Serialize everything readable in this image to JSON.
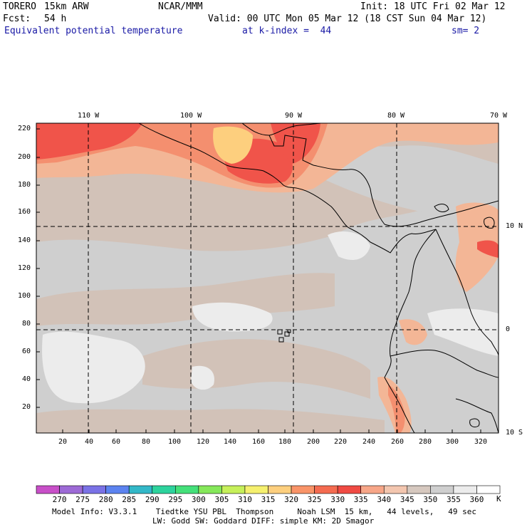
{
  "header": {
    "model": "TORERO",
    "resolution": "15km ARW",
    "org": "NCAR/MMM",
    "init": "Init: 18 UTC Fri 02 Mar 12",
    "fcst_label": "Fcst:",
    "fcst_value": "54 h",
    "valid": "Valid: 00 UTC Mon 05 Mar 12 (18 CST Sun 04 Mar 12)",
    "field": "Equivalent potential temperature",
    "level": "at k-index =  44",
    "smooth": "sm= 2"
  },
  "map": {
    "lon_labels": [
      "110 W",
      "100 W",
      "90 W",
      "80 W",
      "70 W"
    ],
    "lat_labels": [
      "10 N",
      "0",
      "10 S"
    ],
    "x_grid_labels": [
      "20",
      "40",
      "60",
      "80",
      "100",
      "120",
      "140",
      "160",
      "180",
      "200",
      "220",
      "240",
      "260",
      "280",
      "300",
      "320"
    ],
    "y_grid_labels": [
      "220",
      "200",
      "180",
      "160",
      "140",
      "120",
      "100",
      "80",
      "60",
      "40",
      "20"
    ],
    "colors": {
      "border": "#000000",
      "gridline": "#000000",
      "t350": "#cfcfcf",
      "t355": "#ececec",
      "t345": "#d2c2b8",
      "t340": "#f3b696",
      "t335": "#f48f6f",
      "t330": "#f0544a",
      "t320": "#fdcf7e"
    }
  },
  "colorbar": {
    "unit": "K",
    "labels": [
      "270",
      "275",
      "280",
      "285",
      "290",
      "295",
      "300",
      "305",
      "310",
      "315",
      "320",
      "325",
      "330",
      "335",
      "340",
      "345",
      "350",
      "355",
      "360"
    ],
    "colors": [
      "#c84fc8",
      "#9d6ad6",
      "#7a72e6",
      "#5c83f0",
      "#33b8c8",
      "#2dd39d",
      "#44e07a",
      "#85e85a",
      "#c6f05a",
      "#f5f06e",
      "#fdcf7e",
      "#f99468",
      "#f46b50",
      "#f04a43",
      "#f7a688",
      "#f3c6af",
      "#d6c8bf",
      "#cfcfcf",
      "#ececec",
      "#ffffff"
    ]
  },
  "footer": {
    "line1": "Model Info: V3.3.1    Tiedtke YSU PBL  Thompson     Noah LSM  15 km,   44 levels,   49 sec",
    "line2": "LW: Godd SW: Goddard DIFF: simple KM: 2D Smagor"
  }
}
